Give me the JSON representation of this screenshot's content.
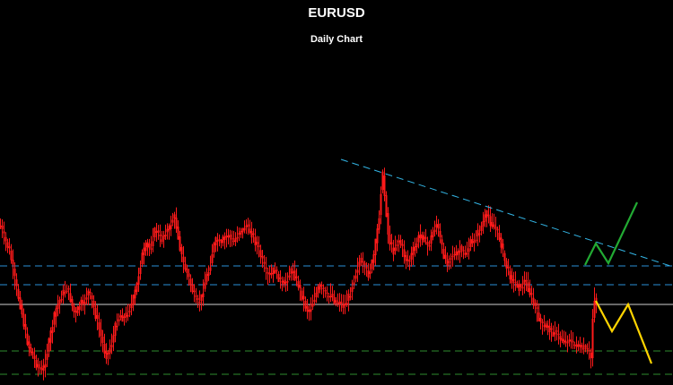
{
  "chart_data": {
    "type": "candlestick",
    "title": "EURUSD",
    "subtitle": "Daily Chart",
    "xlabel": "",
    "ylabel": "",
    "grid": false,
    "price_series": {
      "color": "#ff1a1a",
      "points": [
        [
          0,
          252
        ],
        [
          5,
          268
        ],
        [
          10,
          280
        ],
        [
          14,
          300
        ],
        [
          17,
          318
        ],
        [
          20,
          332
        ],
        [
          23,
          345
        ],
        [
          26,
          362
        ],
        [
          29,
          378
        ],
        [
          32,
          388
        ],
        [
          35,
          395
        ],
        [
          38,
          402
        ],
        [
          41,
          409
        ],
        [
          44,
          412
        ],
        [
          47,
          415
        ],
        [
          50,
          402
        ],
        [
          53,
          388
        ],
        [
          56,
          372
        ],
        [
          59,
          358
        ],
        [
          62,
          345
        ],
        [
          65,
          338
        ],
        [
          68,
          330
        ],
        [
          71,
          326
        ],
        [
          74,
          322
        ],
        [
          77,
          330
        ],
        [
          80,
          342
        ],
        [
          83,
          352
        ],
        [
          86,
          346
        ],
        [
          89,
          338
        ],
        [
          92,
          340
        ],
        [
          95,
          332
        ],
        [
          98,
          326
        ],
        [
          101,
          332
        ],
        [
          104,
          344
        ],
        [
          107,
          356
        ],
        [
          110,
          368
        ],
        [
          113,
          380
        ],
        [
          116,
          392
        ],
        [
          119,
          398
        ],
        [
          122,
          388
        ],
        [
          125,
          380
        ],
        [
          128,
          365
        ],
        [
          131,
          356
        ],
        [
          134,
          352
        ],
        [
          137,
          356
        ],
        [
          140,
          352
        ],
        [
          143,
          346
        ],
        [
          146,
          340
        ],
        [
          149,
          330
        ],
        [
          152,
          318
        ],
        [
          155,
          300
        ],
        [
          158,
          285
        ],
        [
          161,
          278
        ],
        [
          164,
          272
        ],
        [
          167,
          280
        ],
        [
          170,
          265
        ],
        [
          173,
          255
        ],
        [
          176,
          262
        ],
        [
          179,
          270
        ],
        [
          182,
          262
        ],
        [
          185,
          258
        ],
        [
          188,
          256
        ],
        [
          191,
          245
        ],
        [
          194,
          243
        ],
        [
          197,
          258
        ],
        [
          200,
          276
        ],
        [
          203,
          292
        ],
        [
          206,
          300
        ],
        [
          209,
          308
        ],
        [
          212,
          318
        ],
        [
          215,
          328
        ],
        [
          218,
          335
        ],
        [
          221,
          338
        ],
        [
          224,
          332
        ],
        [
          227,
          318
        ],
        [
          230,
          308
        ],
        [
          233,
          300
        ],
        [
          236,
          282
        ],
        [
          239,
          270
        ],
        [
          242,
          268
        ],
        [
          245,
          273
        ],
        [
          248,
          268
        ],
        [
          251,
          264
        ],
        [
          254,
          262
        ],
        [
          257,
          268
        ],
        [
          260,
          270
        ],
        [
          263,
          264
        ],
        [
          266,
          258
        ],
        [
          269,
          260
        ],
        [
          272,
          252
        ],
        [
          275,
          254
        ],
        [
          278,
          258
        ],
        [
          281,
          262
        ],
        [
          284,
          270
        ],
        [
          287,
          276
        ],
        [
          290,
          286
        ],
        [
          293,
          296
        ],
        [
          296,
          304
        ],
        [
          299,
          308
        ],
        [
          302,
          306
        ],
        [
          305,
          300
        ],
        [
          308,
          306
        ],
        [
          311,
          312
        ],
        [
          314,
          318
        ],
        [
          317,
          316
        ],
        [
          320,
          310
        ],
        [
          323,
          304
        ],
        [
          326,
          302
        ],
        [
          329,
          312
        ],
        [
          332,
          318
        ],
        [
          335,
          328
        ],
        [
          338,
          336
        ],
        [
          341,
          345
        ],
        [
          344,
          348
        ],
        [
          347,
          340
        ],
        [
          350,
          332
        ],
        [
          353,
          325
        ],
        [
          356,
          320
        ],
        [
          359,
          322
        ],
        [
          362,
          328
        ],
        [
          365,
          332
        ],
        [
          368,
          328
        ],
        [
          371,
          334
        ],
        [
          374,
          338
        ],
        [
          377,
          336
        ],
        [
          380,
          340
        ],
        [
          383,
          342
        ],
        [
          386,
          336
        ],
        [
          389,
          330
        ],
        [
          392,
          318
        ],
        [
          395,
          308
        ],
        [
          398,
          298
        ],
        [
          401,
          290
        ],
        [
          404,
          296
        ],
        [
          407,
          300
        ],
        [
          410,
          306
        ],
        [
          413,
          298
        ],
        [
          416,
          285
        ],
        [
          419,
          265
        ],
        [
          422,
          240
        ],
        [
          424,
          212
        ],
        [
          426,
          196
        ],
        [
          428,
          218
        ],
        [
          430,
          238
        ],
        [
          432,
          262
        ],
        [
          435,
          275
        ],
        [
          438,
          280
        ],
        [
          441,
          272
        ],
        [
          444,
          268
        ],
        [
          447,
          275
        ],
        [
          450,
          285
        ],
        [
          453,
          292
        ],
        [
          456,
          290
        ],
        [
          459,
          282
        ],
        [
          462,
          276
        ],
        [
          465,
          268
        ],
        [
          468,
          262
        ],
        [
          471,
          264
        ],
        [
          474,
          270
        ],
        [
          477,
          276
        ],
        [
          480,
          265
        ],
        [
          483,
          256
        ],
        [
          486,
          250
        ],
        [
          489,
          262
        ],
        [
          492,
          278
        ],
        [
          495,
          288
        ],
        [
          498,
          292
        ],
        [
          501,
          288
        ],
        [
          504,
          284
        ],
        [
          507,
          286
        ],
        [
          510,
          282
        ],
        [
          513,
          278
        ],
        [
          516,
          282
        ],
        [
          519,
          284
        ],
        [
          522,
          276
        ],
        [
          525,
          270
        ],
        [
          528,
          268
        ],
        [
          531,
          262
        ],
        [
          534,
          258
        ],
        [
          537,
          250
        ],
        [
          540,
          243
        ],
        [
          543,
          238
        ],
        [
          546,
          248
        ],
        [
          549,
          252
        ],
        [
          552,
          256
        ],
        [
          555,
          262
        ],
        [
          558,
          272
        ],
        [
          561,
          288
        ],
        [
          564,
          298
        ],
        [
          567,
          305
        ],
        [
          570,
          312
        ],
        [
          573,
          316
        ],
        [
          576,
          318
        ],
        [
          579,
          322
        ],
        [
          582,
          318
        ],
        [
          585,
          312
        ],
        [
          588,
          322
        ],
        [
          591,
          330
        ],
        [
          594,
          338
        ],
        [
          597,
          346
        ],
        [
          600,
          355
        ],
        [
          603,
          362
        ],
        [
          606,
          366
        ],
        [
          609,
          362
        ],
        [
          612,
          368
        ],
        [
          615,
          372
        ],
        [
          618,
          370
        ],
        [
          621,
          374
        ],
        [
          624,
          378
        ],
        [
          627,
          380
        ],
        [
          630,
          382
        ],
        [
          633,
          378
        ],
        [
          636,
          382
        ],
        [
          639,
          386
        ],
        [
          642,
          384
        ],
        [
          645,
          388
        ],
        [
          648,
          390
        ],
        [
          651,
          388
        ],
        [
          654,
          392
        ],
        [
          657,
          395
        ],
        [
          659,
          405
        ],
        [
          660,
          355
        ],
        [
          661,
          330
        ],
        [
          664,
          338
        ]
      ]
    },
    "trendline": {
      "color": "#33b5e5",
      "style": "dashed",
      "from": [
        380,
        178
      ],
      "to": [
        750,
        298
      ]
    },
    "horizontal_levels": [
      {
        "y": 297,
        "color": "#2a8fd6",
        "style": "dashed"
      },
      {
        "y": 318,
        "color": "#2a8fd6",
        "style": "dashed"
      },
      {
        "y": 340,
        "color": "#cfcfcf",
        "style": "solid"
      },
      {
        "y": 392,
        "color": "#2e8b2e",
        "style": "dashed"
      },
      {
        "y": 418,
        "color": "#2e8b2e",
        "style": "dashed"
      }
    ],
    "projections": [
      {
        "color": "#22aa33",
        "points": [
          [
            652,
            296
          ],
          [
            664,
            272
          ],
          [
            678,
            294
          ],
          [
            710,
            226
          ]
        ]
      },
      {
        "color": "#ffd400",
        "points": [
          [
            664,
            336
          ],
          [
            682,
            370
          ],
          [
            700,
            340
          ],
          [
            726,
            406
          ]
        ]
      }
    ]
  }
}
